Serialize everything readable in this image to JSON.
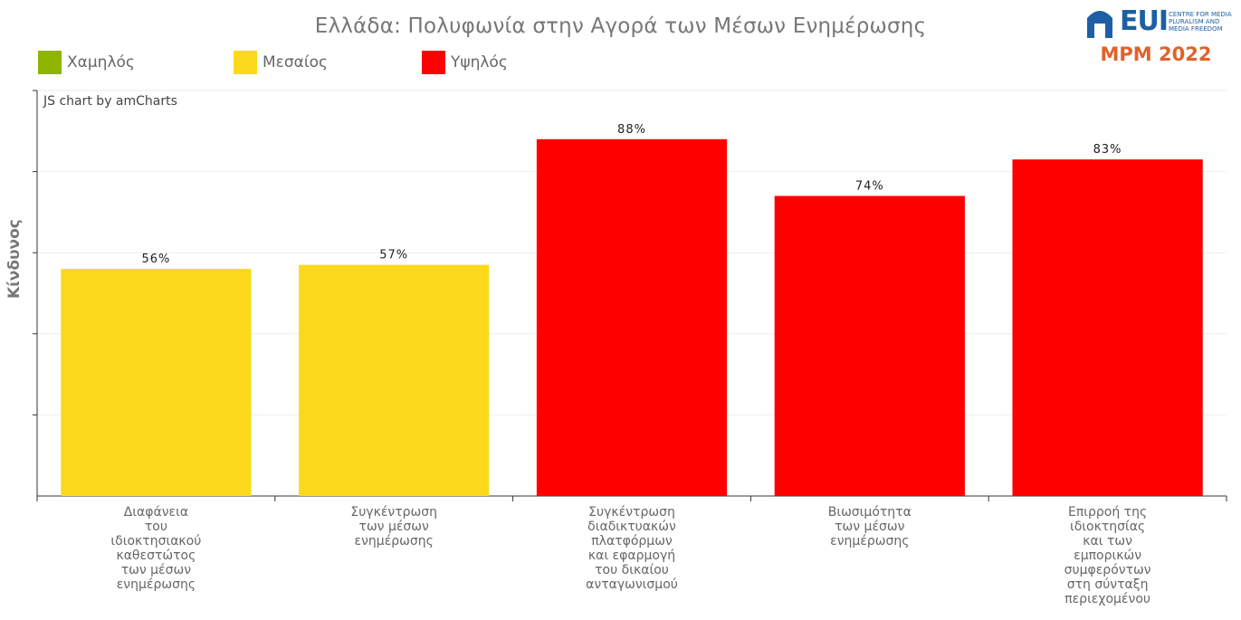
{
  "title": "Ελλάδα: Πολυφωνία στην Αγορά των Μέσων Ενημέρωσης",
  "legend": [
    {
      "label": "Χαμηλός",
      "color": "#8fb500"
    },
    {
      "label": "Μεσαίος",
      "color": "#fcd91a"
    },
    {
      "label": "Υψηλός",
      "color": "#ff0000"
    }
  ],
  "logo": {
    "eui": "EUI",
    "subtitle": "CENTRE FOR MEDIA PLURALISM AND MEDIA FREEDOM",
    "mpm": "MPM 2022"
  },
  "credit": "JS chart by amCharts",
  "chart_data": {
    "type": "bar",
    "title": "Ελλάδα: Πολυφωνία στην Αγορά των Μέσων Ενημέρωσης",
    "ylabel": "Κίνδυνος",
    "ylim": [
      0,
      100
    ],
    "grid": true,
    "categories": [
      "Διαφάνεια\nτου\nιδιοκτησιακού\nκαθεστώτος\nτων μέσων\nενημέρωσης",
      "Συγκέντρωση\nτων μέσων\nενημέρωσης",
      "Συγκέντρωση\nδιαδικτυακών\nπλατφόρμων\nκαι εφαρμογή\nτου δικαίου\nανταγωνισμού",
      "Βιωσιμότητα\nτων μέσων\nενημέρωσης",
      "Επιρροή της\nιδιοκτησίας\nκαι των\nεμπορικών\nσυμφερόντων\nστη σύνταξη\nπεριεχομένου"
    ],
    "values": [
      56,
      57,
      88,
      74,
      83
    ],
    "data_labels": [
      "56%",
      "57%",
      "88%",
      "74%",
      "83%"
    ],
    "colors": [
      "#fcd91a",
      "#fcd91a",
      "#ff0000",
      "#ff0000",
      "#ff0000"
    ]
  }
}
